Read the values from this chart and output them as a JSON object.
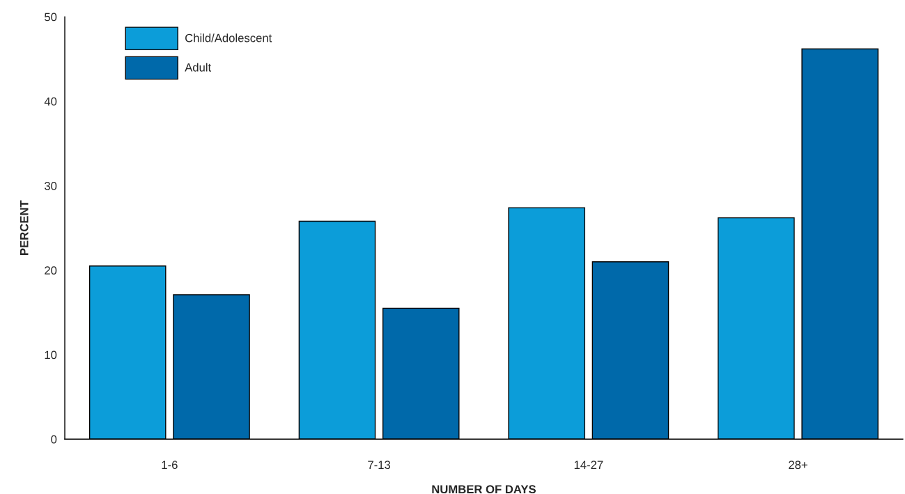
{
  "chart_data": {
    "type": "bar",
    "xlabel": "NUMBER OF DAYS",
    "ylabel": "PERCENT",
    "categories": [
      "1-6",
      "7-13",
      "14-27",
      "28+"
    ],
    "series": [
      {
        "name": "Child/Adolescent",
        "color": "#0c9dd9",
        "values": [
          20.5,
          25.8,
          27.4,
          26.2
        ]
      },
      {
        "name": "Adult",
        "color": "#0069aa",
        "values": [
          17.1,
          15.5,
          21.0,
          46.2
        ]
      }
    ],
    "ylim": [
      0,
      50
    ],
    "yticks": [
      0,
      10,
      20,
      30,
      40,
      50
    ],
    "grid": false,
    "legend": "top left"
  }
}
